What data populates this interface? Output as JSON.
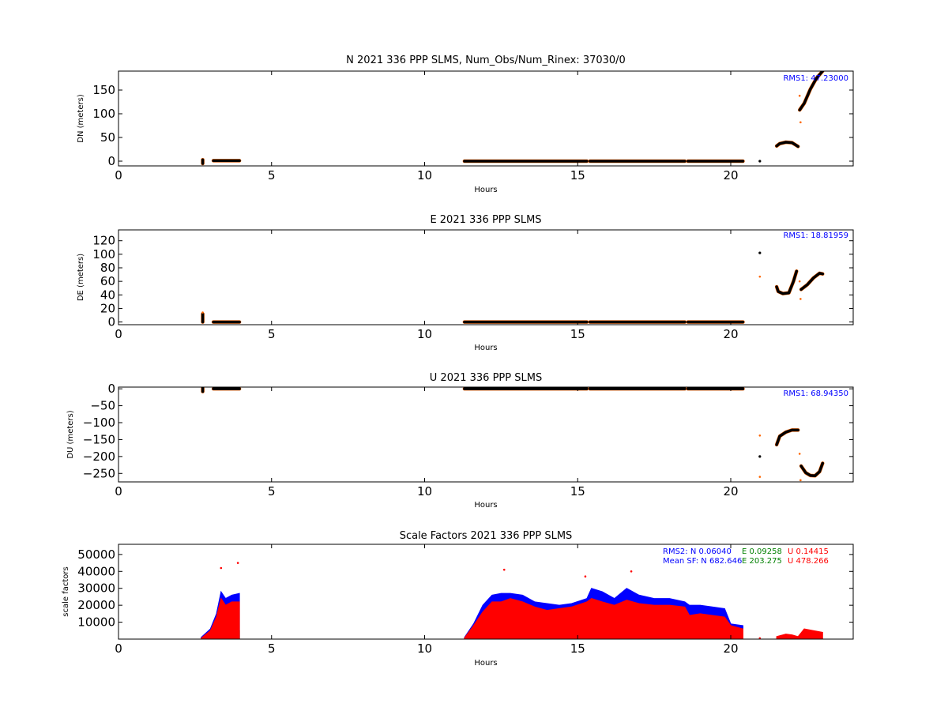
{
  "figure": {
    "background": "#ffffff"
  },
  "colors": {
    "black": "#000000",
    "orange": "#ff6600",
    "blue": "#0000ff",
    "green": "#008000",
    "red": "#ff0000"
  },
  "chart_data": [
    {
      "type": "scatter",
      "title": "N 2021 336 PPP  SLMS, Num_Obs/Num_Rinex: 37030/0",
      "xlabel": "Hours",
      "ylabel": "DN (meters)",
      "xlim": [
        0,
        24
      ],
      "ylim": [
        -10,
        190
      ],
      "xticks": [
        0,
        5,
        10,
        15,
        20
      ],
      "yticks": [
        0,
        50,
        100,
        150
      ],
      "annotations": [
        {
          "text": "RMS1: 47.23000",
          "color": "#0000ff"
        }
      ],
      "series": [
        {
          "color": "#000000",
          "segments": [
            {
              "x": [
                2.75,
                2.75
              ],
              "y": [
                -5,
                3
              ]
            },
            {
              "x": [
                3.1,
                3.95
              ],
              "y": [
                1,
                1
              ]
            },
            {
              "x": [
                11.3,
                15.3
              ],
              "y": [
                0,
                0
              ]
            },
            {
              "x": [
                15.4,
                18.5
              ],
              "y": [
                0,
                0
              ]
            },
            {
              "x": [
                18.6,
                20.4
              ],
              "y": [
                0,
                0
              ]
            },
            {
              "x": [
                20.95,
                20.95
              ],
              "y": [
                0,
                0
              ]
            },
            {
              "x": [
                21.5,
                21.6,
                21.8,
                22.0,
                22.1,
                22.2
              ],
              "y": [
                32,
                37,
                40,
                39,
                35,
                31
              ]
            },
            {
              "x": [
                22.25,
                22.4,
                22.6,
                22.8,
                23.0
              ],
              "y": [
                108,
                122,
                152,
                175,
                190
              ]
            }
          ]
        },
        {
          "color": "#ff6600",
          "points": {
            "x": [
              22.25,
              22.28
            ],
            "y": [
              138,
              82
            ]
          }
        }
      ]
    },
    {
      "type": "scatter",
      "title": "E 2021 336 PPP  SLMS",
      "xlabel": "Hours",
      "ylabel": "DE (meters)",
      "xlim": [
        0,
        24
      ],
      "ylim": [
        -4,
        136
      ],
      "xticks": [
        0,
        5,
        10,
        15,
        20
      ],
      "yticks": [
        0,
        20,
        40,
        60,
        80,
        100,
        120
      ],
      "annotations": [
        {
          "text": "RMS1: 18.81959",
          "color": "#0000ff"
        }
      ],
      "series": [
        {
          "color": "#000000",
          "segments": [
            {
              "x": [
                2.75,
                2.75
              ],
              "y": [
                0,
                12
              ]
            },
            {
              "x": [
                3.1,
                3.95
              ],
              "y": [
                0,
                0
              ]
            },
            {
              "x": [
                11.3,
                15.3
              ],
              "y": [
                0,
                0
              ]
            },
            {
              "x": [
                15.4,
                18.5
              ],
              "y": [
                0,
                0
              ]
            },
            {
              "x": [
                18.6,
                20.4
              ],
              "y": [
                0,
                0
              ]
            },
            {
              "x": [
                20.95,
                20.95
              ],
              "y": [
                102,
                102
              ]
            },
            {
              "x": [
                21.5,
                21.55,
                21.7,
                21.9,
                22.05,
                22.15
              ],
              "y": [
                52,
                45,
                42,
                43,
                60,
                75
              ]
            },
            {
              "x": [
                22.3,
                22.5,
                22.7,
                22.9,
                23.0
              ],
              "y": [
                48,
                55,
                65,
                72,
                71
              ]
            }
          ]
        },
        {
          "color": "#ff6600",
          "points": {
            "x": [
              2.75,
              20.95,
              22.25,
              22.28
            ],
            "y": [
              14,
              67,
              60,
              34
            ]
          }
        }
      ]
    },
    {
      "type": "scatter",
      "title": "U 2021 336 PPP  SLMS",
      "xlabel": "Hours",
      "ylabel": "DU (meters)",
      "xlim": [
        0,
        24
      ],
      "ylim": [
        -275,
        5
      ],
      "xticks": [
        0,
        5,
        10,
        15,
        20
      ],
      "yticks": [
        0,
        -50,
        -100,
        -150,
        -200,
        -250
      ],
      "annotations": [
        {
          "text": "RMS1: 68.94350",
          "color": "#0000ff"
        }
      ],
      "series": [
        {
          "color": "#000000",
          "segments": [
            {
              "x": [
                2.75,
                2.75
              ],
              "y": [
                -8,
                2
              ]
            },
            {
              "x": [
                3.1,
                3.95
              ],
              "y": [
                0,
                0
              ]
            },
            {
              "x": [
                11.3,
                15.3
              ],
              "y": [
                0,
                0
              ]
            },
            {
              "x": [
                15.4,
                18.5
              ],
              "y": [
                0,
                0
              ]
            },
            {
              "x": [
                18.6,
                20.4
              ],
              "y": [
                0,
                0
              ]
            },
            {
              "x": [
                20.95,
                20.95
              ],
              "y": [
                -200,
                -200
              ]
            },
            {
              "x": [
                21.5,
                21.6,
                21.8,
                22.0,
                22.2
              ],
              "y": [
                -165,
                -140,
                -128,
                -122,
                -122
              ]
            },
            {
              "x": [
                22.3,
                22.45,
                22.6,
                22.75,
                22.9,
                23.0
              ],
              "y": [
                -228,
                -248,
                -256,
                -257,
                -245,
                -220
              ]
            }
          ]
        },
        {
          "color": "#ff6600",
          "points": {
            "x": [
              20.95,
              20.95,
              22.25,
              22.28
            ],
            "y": [
              -138,
              -260,
              -192,
              -270
            ]
          }
        }
      ]
    },
    {
      "type": "scatter",
      "title": "Scale Factors 2021 336 PPP  SLMS",
      "xlabel": "Hours",
      "ylabel": "scale factors",
      "xlim": [
        0,
        24
      ],
      "ylim": [
        0,
        56000
      ],
      "xticks": [
        0,
        5,
        10,
        15,
        20
      ],
      "yticks": [
        10000,
        20000,
        30000,
        40000,
        50000
      ],
      "annotations": [
        {
          "text": "RMS2: N  0.06040",
          "color": "#0000ff"
        },
        {
          "text": "E  0.09258",
          "color": "#008000"
        },
        {
          "text": "U  0.14415",
          "color": "#ff0000"
        },
        {
          "text": "Mean SF: N 682.646",
          "color": "#0000ff"
        },
        {
          "text": "E 203.275",
          "color": "#008000"
        },
        {
          "text": "U 478.266",
          "color": "#ff0000"
        }
      ],
      "series": [
        {
          "name": "N",
          "color": "#0000ff",
          "envelope": {
            "x": [
              2.7,
              3.0,
              3.2,
              3.35,
              3.5,
              3.7,
              3.95,
              11.3,
              11.6,
              11.9,
              12.2,
              12.5,
              12.8,
              13.2,
              13.6,
              14.0,
              14.4,
              14.8,
              15.3,
              15.45,
              15.8,
              16.2,
              16.6,
              17.0,
              17.5,
              18.0,
              18.5,
              18.65,
              19.0,
              19.4,
              19.8,
              20.0,
              20.4
            ],
            "y": [
              1000,
              6000,
              15000,
              28000,
              24000,
              26000,
              27000,
              1000,
              9000,
              20000,
              26000,
              27000,
              27000,
              26000,
              22000,
              21000,
              20000,
              21000,
              24000,
              30000,
              28000,
              24000,
              30000,
              26000,
              24000,
              24000,
              22000,
              20000,
              20000,
              19000,
              18000,
              9000,
              8000
            ]
          }
        },
        {
          "name": "E",
          "color": "#008000",
          "envelope": {
            "x": [
              2.7,
              3.0,
              3.3,
              3.6,
              3.95,
              11.3,
              12.0,
              12.5,
              13.0,
              13.5,
              14.0,
              14.5,
              15.0,
              15.3,
              15.45,
              16.0,
              16.5,
              17.0,
              17.5,
              18.0,
              18.5,
              18.65,
              19.0,
              19.5,
              20.0,
              20.4
            ],
            "y": [
              300,
              1800,
              4200,
              4800,
              5000,
              300,
              6500,
              7500,
              7500,
              6500,
              6000,
              5500,
              6000,
              6500,
              6000,
              4500,
              4000,
              4000,
              4000,
              4000,
              3500,
              3000,
              2500,
              2000,
              1000,
              800
            ]
          }
        },
        {
          "name": "U",
          "color": "#ff0000",
          "envelope": {
            "x": [
              2.7,
              3.0,
              3.2,
              3.35,
              3.5,
              3.7,
              3.95,
              11.3,
              11.6,
              11.9,
              12.2,
              12.5,
              12.8,
              13.2,
              13.6,
              14.0,
              14.4,
              14.8,
              15.3,
              15.45,
              15.8,
              16.2,
              16.6,
              17.0,
              17.5,
              18.0,
              18.5,
              18.65,
              19.0,
              19.4,
              19.8,
              20.0,
              20.4,
              21.5,
              21.8,
              22.0,
              22.2,
              22.4,
              22.7,
              23.0
            ],
            "y": [
              500,
              5000,
              13000,
              24000,
              20000,
              22000,
              22000,
              700,
              8000,
              16000,
              22000,
              22000,
              24000,
              22000,
              19000,
              17000,
              18000,
              19000,
              22000,
              24000,
              22000,
              20000,
              23000,
              21000,
              20000,
              20000,
              19000,
              14000,
              15000,
              14000,
              13000,
              8000,
              6000,
              1500,
              3000,
              2500,
              1500,
              6000,
              5000,
              4000
            ]
          }
        },
        {
          "name": "outliers",
          "color": "#ff0000",
          "points": {
            "x": [
              3.35,
              3.9,
              12.6,
              15.25,
              16.75,
              20.95
            ],
            "y": [
              42000,
              45000,
              41000,
              37000,
              40000,
              500
            ]
          }
        }
      ]
    }
  ]
}
